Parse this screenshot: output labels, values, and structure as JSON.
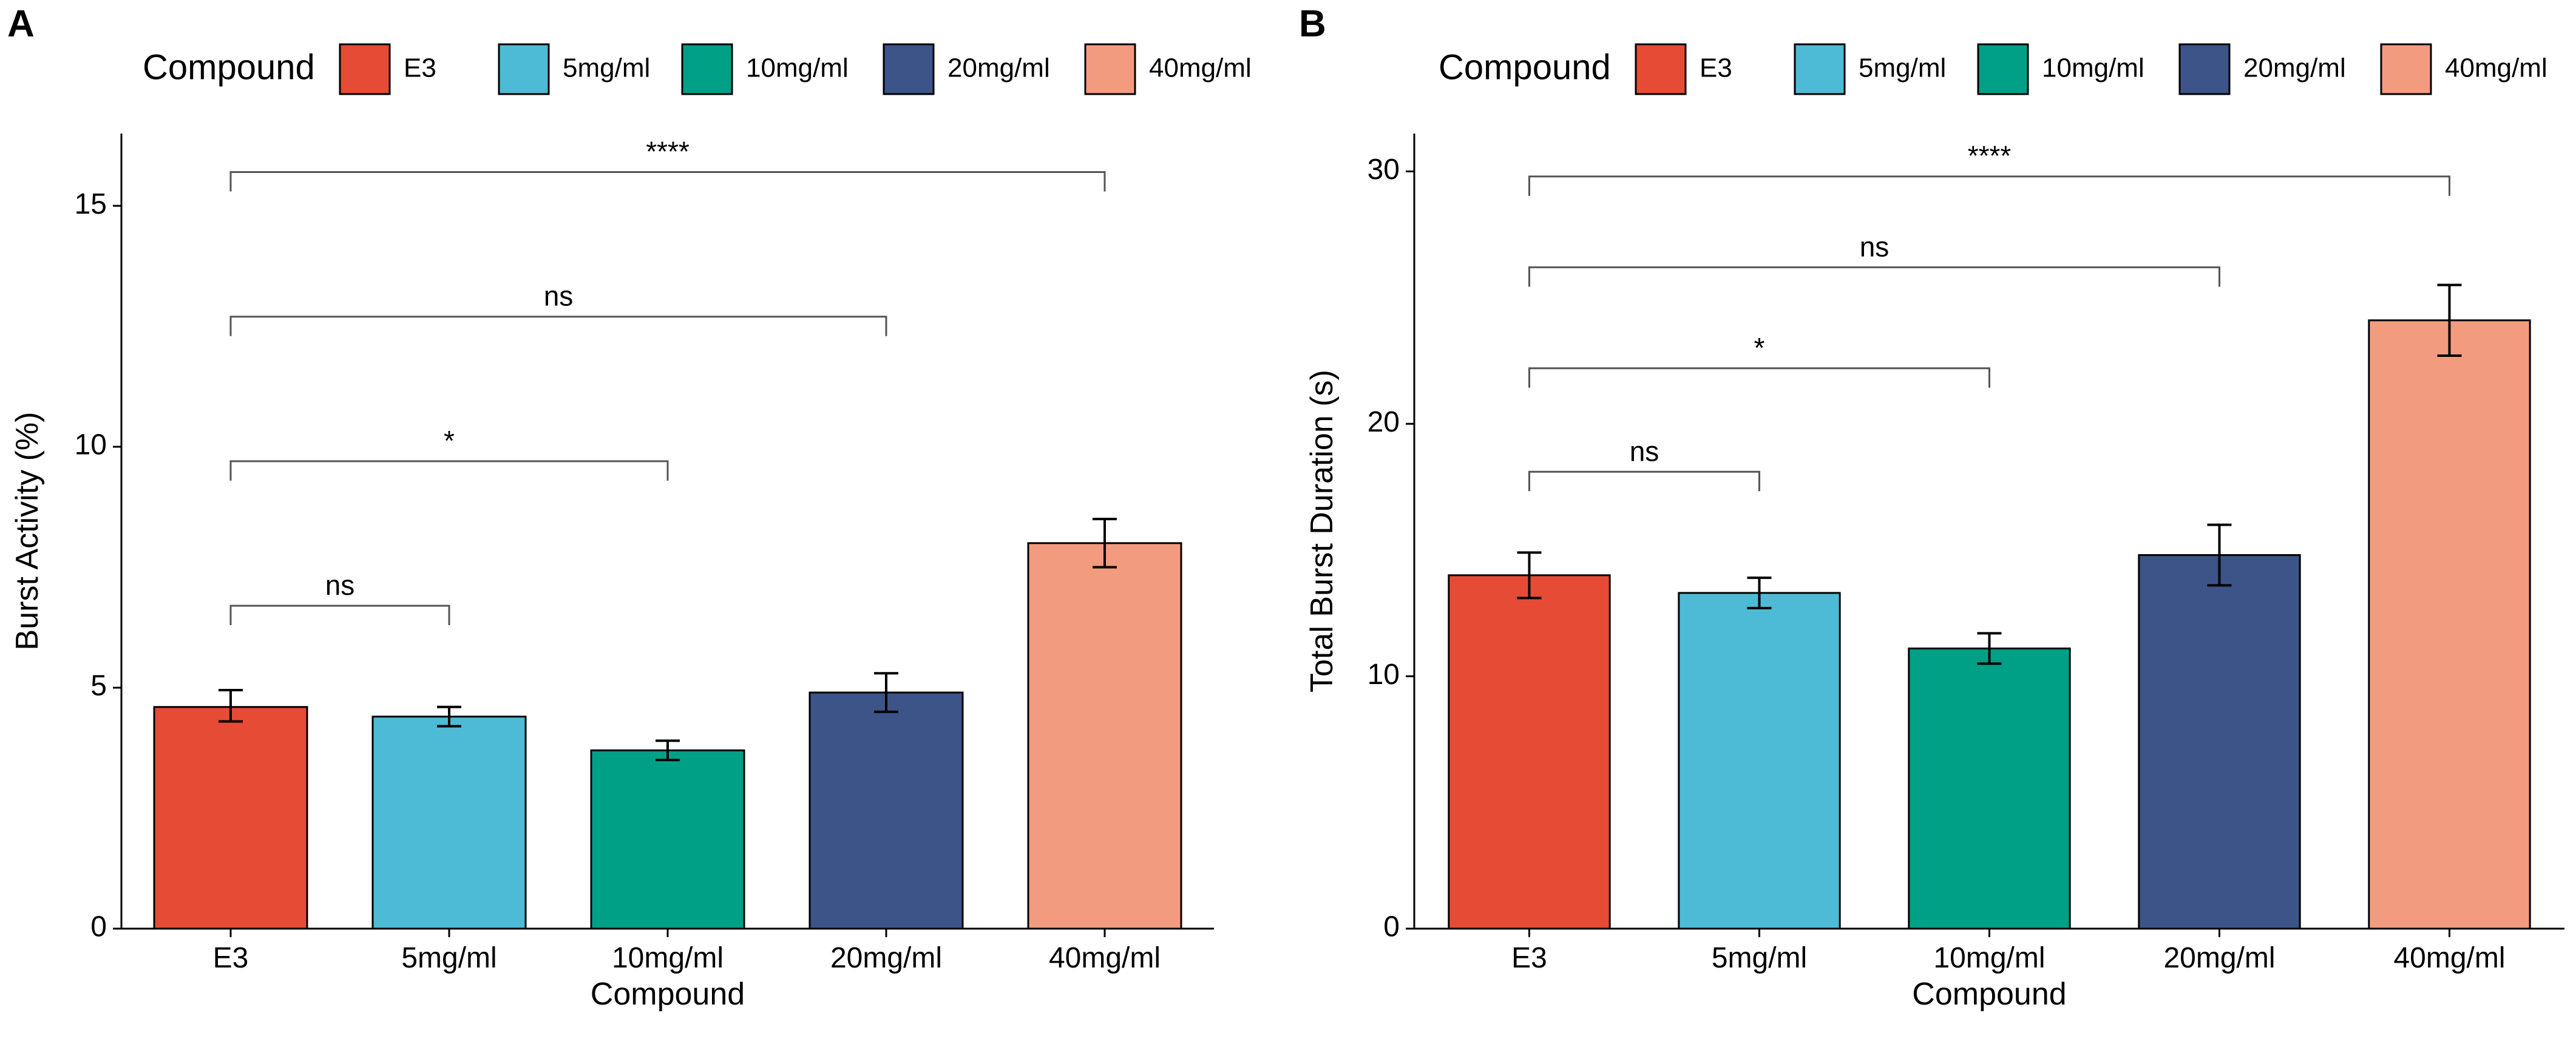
{
  "colors": {
    "E3": "#e64b35",
    "5mg/ml": "#4dbbd5",
    "10mg/ml": "#00a087",
    "20mg/ml": "#3c5488",
    "40mg/ml": "#f39b7f"
  },
  "chart_data": [
    {
      "panel": "A",
      "type": "bar",
      "legend": {
        "title": "Compound",
        "entries": [
          "E3",
          "5mg/ml",
          "10mg/ml",
          "20mg/ml",
          "40mg/ml"
        ],
        "placement": "top"
      },
      "categories": [
        "E3",
        "5mg/ml",
        "10mg/ml",
        "20mg/ml",
        "40mg/ml"
      ],
      "values": [
        4.6,
        4.4,
        3.7,
        4.9,
        8.0
      ],
      "error_low": [
        4.3,
        4.2,
        3.5,
        4.5,
        7.5
      ],
      "error_high": [
        4.95,
        4.6,
        3.9,
        5.3,
        8.5
      ],
      "xlabel": "Compound",
      "ylabel": "Burst Activity (%)",
      "ylim": [
        0,
        16.5
      ],
      "yticks": [
        0,
        5,
        10,
        15
      ],
      "comparisons": [
        {
          "from": "E3",
          "to": "5mg/ml",
          "label": "ns",
          "y": 6.7
        },
        {
          "from": "E3",
          "to": "10mg/ml",
          "label": "*",
          "y": 9.7
        },
        {
          "from": "E3",
          "to": "20mg/ml",
          "label": "ns",
          "y": 12.7
        },
        {
          "from": "E3",
          "to": "40mg/ml",
          "label": "****",
          "y": 15.7
        }
      ]
    },
    {
      "panel": "B",
      "type": "bar",
      "legend": {
        "title": "Compound",
        "entries": [
          "E3",
          "5mg/ml",
          "10mg/ml",
          "20mg/ml",
          "40mg/ml"
        ],
        "placement": "top"
      },
      "categories": [
        "E3",
        "5mg/ml",
        "10mg/ml",
        "20mg/ml",
        "40mg/ml"
      ],
      "values": [
        14.0,
        13.3,
        11.1,
        14.8,
        24.1
      ],
      "error_low": [
        13.1,
        12.7,
        10.5,
        13.6,
        22.7
      ],
      "error_high": [
        14.9,
        13.9,
        11.7,
        16.0,
        25.5
      ],
      "xlabel": "Compound",
      "ylabel": "Total Burst Duration (s)",
      "ylim": [
        0,
        31.5
      ],
      "yticks": [
        0,
        10,
        20,
        30
      ],
      "comparisons": [
        {
          "from": "E3",
          "to": "5mg/ml",
          "label": "ns",
          "y": 18.1
        },
        {
          "from": "E3",
          "to": "10mg/ml",
          "label": "*",
          "y": 22.2
        },
        {
          "from": "E3",
          "to": "20mg/ml",
          "label": "ns",
          "y": 26.2
        },
        {
          "from": "E3",
          "to": "40mg/ml",
          "label": "****",
          "y": 29.8
        }
      ]
    }
  ]
}
